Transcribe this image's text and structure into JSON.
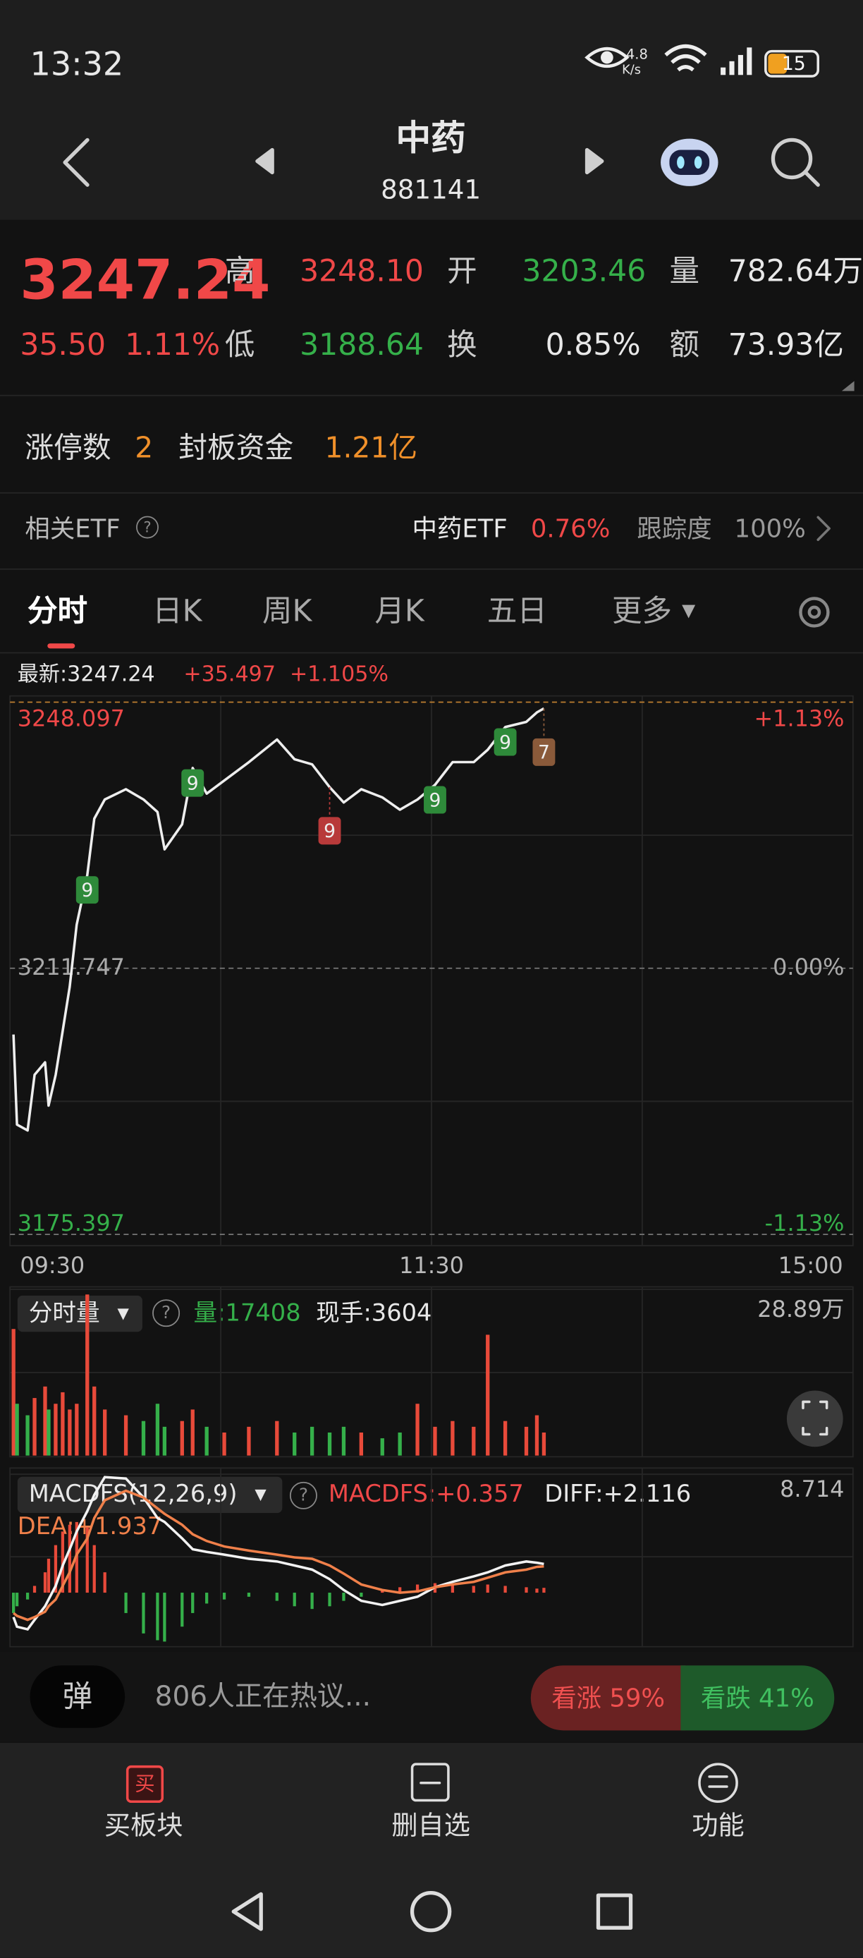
{
  "status_bar": {
    "time": "13:32",
    "net_speed": "4.8",
    "net_unit": "K/s",
    "battery": "15"
  },
  "header": {
    "title": "中药",
    "code": "881141"
  },
  "quote": {
    "price": "3247.24",
    "change": "35.50",
    "change_pct": "1.11%",
    "fields": [
      {
        "label": "高",
        "value": "3248.10",
        "color": "#f04848"
      },
      {
        "label": "开",
        "value": "3203.46",
        "color": "#35b04a"
      },
      {
        "label": "量",
        "value": "782.64万",
        "color": "#e8e8e8"
      },
      {
        "label": "低",
        "value": "3188.64",
        "color": "#35b04a"
      },
      {
        "label": "换",
        "value": "0.85%",
        "color": "#e8e8e8"
      },
      {
        "label": "额",
        "value": "73.93亿",
        "color": "#e8e8e8"
      }
    ]
  },
  "limit_row": {
    "count_label": "涨停数",
    "count": "2",
    "fund_label": "封板资金",
    "fund": "1.21亿"
  },
  "etf_row": {
    "label": "相关ETF",
    "etf_name": "中药ETF",
    "etf_change": "0.76%",
    "track_label": "跟踪度",
    "track_value": "100%"
  },
  "tabs": [
    "分时",
    "日K",
    "周K",
    "月K",
    "五日",
    "更多"
  ],
  "chart_info": {
    "latest": "最新:3247.24",
    "change": "+35.497",
    "change_pct": "+1.105%"
  },
  "price_chart": {
    "type": "line",
    "x": [
      1,
      2,
      5,
      7,
      10,
      11,
      13,
      15,
      17,
      19,
      22,
      24,
      27,
      33,
      38,
      42,
      44,
      49,
      52,
      56,
      61,
      68,
      76,
      81,
      86,
      91,
      95,
      100,
      106,
      111,
      116,
      121,
      126,
      132,
      136,
      141,
      147,
      150,
      152
    ],
    "values": [
      3202.7,
      3190.4,
      3189.6,
      3197.2,
      3198.9,
      3193.0,
      3197.2,
      3203.2,
      3209.2,
      3217.7,
      3224.5,
      3232.2,
      3234.8,
      3236.2,
      3234.8,
      3233.1,
      3228.0,
      3231.4,
      3239.1,
      3235.6,
      3237.4,
      3239.9,
      3243.0,
      3240.3,
      3239.6,
      3236.5,
      3234.4,
      3236.2,
      3235.1,
      3233.4,
      3234.8,
      3236.8,
      3239.9,
      3239.9,
      3241.6,
      3244.7,
      3245.4,
      3246.7,
      3247.24
    ],
    "color": "#eeeeee",
    "xlim": [
      0,
      240
    ],
    "xticks": [
      {
        "value": 0,
        "label": "09:30"
      },
      {
        "value": 120,
        "label": "11:30"
      },
      {
        "value": 240,
        "label": "15:00"
      }
    ],
    "ylim": [
      3175.397,
      3248.097
    ],
    "yticks": [
      3248.097,
      3211.747,
      3175.397
    ],
    "right_labels": [
      "+1.13%",
      "0.00%",
      "-1.13%"
    ],
    "annotations": [
      {
        "x": 22,
        "label": "9",
        "color": "#2e8a3a"
      },
      {
        "x": 52,
        "label": "9",
        "color": "#2e8a3a"
      },
      {
        "x": 91,
        "label": "9",
        "color": "#b83a3a"
      },
      {
        "x": 121,
        "label": "9",
        "color": "#2e8a3a"
      },
      {
        "x": 141,
        "label": "9",
        "color": "#2e8a3a"
      },
      {
        "x": 152,
        "label": "7",
        "color": "#8a5a3a"
      }
    ]
  },
  "volume_chart": {
    "type": "bar",
    "title": "分时量",
    "volume_text": "量:17408",
    "current_text": "现手:3604",
    "values": [
      22,
      9,
      7,
      10,
      12,
      8,
      9,
      11,
      8,
      9,
      28,
      12,
      8,
      7,
      6,
      9,
      5,
      6,
      8,
      5,
      4,
      5,
      6,
      4,
      5,
      4,
      5,
      4,
      3,
      4,
      9,
      5,
      6,
      5,
      21,
      6,
      5,
      7,
      4
    ],
    "ylim": [
      0,
      28.89
    ],
    "yticks": [
      {
        "value": 28.89,
        "label": "28.89万"
      }
    ]
  },
  "macd_chart": {
    "type": "macd",
    "title": "MACDFS(12,26,9)",
    "macd_text": "MACDFS:+0.357",
    "diff_text": "DIFF:+2.116",
    "dea_text": "DEA:+1.937",
    "ylim": [
      -3.7,
      8.714
    ],
    "yticks": [
      8.714
    ],
    "series": [
      {
        "name": "MACDFS",
        "color": "#e84a3a",
        "values": [
          -1.5,
          -1.0,
          -0.5,
          0.5,
          1.5,
          2.5,
          3.5,
          4.5,
          5.0,
          5.2,
          4.8,
          3.5,
          1.5,
          -1.5,
          -3.0,
          -3.5,
          -3.6,
          -2.5,
          -1.5,
          -0.8,
          -0.5,
          -0.3,
          -0.6,
          -1.0,
          -1.2,
          -1.0,
          -0.6,
          -0.3,
          0.2,
          0.4,
          0.6,
          0.7,
          0.6,
          0.5,
          0.6,
          0.5,
          0.4,
          0.3,
          0.357
        ]
      },
      {
        "name": "DIFF",
        "color": "#f2f2f2",
        "values": [
          -1.8,
          -2.5,
          -2.7,
          -2.0,
          -1.0,
          -0.5,
          0.5,
          2.0,
          3.2,
          4.5,
          6.0,
          7.2,
          8.5,
          8.4,
          7.0,
          5.5,
          5.2,
          4.0,
          3.2,
          3.0,
          2.8,
          2.5,
          2.3,
          2.0,
          1.7,
          1.0,
          0.2,
          -0.6,
          -0.9,
          -0.6,
          -0.3,
          0.4,
          0.8,
          1.2,
          1.5,
          2.0,
          2.3,
          2.2,
          2.116
        ]
      },
      {
        "name": "DEA",
        "color": "#f0804a",
        "values": [
          -1.5,
          -1.7,
          -2.0,
          -1.8,
          -1.4,
          -1.0,
          -0.5,
          0.5,
          1.5,
          2.8,
          4.0,
          5.5,
          6.8,
          7.5,
          7.0,
          6.2,
          5.8,
          5.0,
          4.3,
          3.8,
          3.4,
          3.1,
          2.8,
          2.6,
          2.5,
          2.0,
          1.4,
          0.6,
          0.2,
          0.0,
          0.1,
          0.4,
          0.6,
          0.8,
          1.1,
          1.5,
          1.7,
          1.9,
          1.937
        ]
      }
    ]
  },
  "discussion": {
    "badge": "弹",
    "text": "806人正在热议...",
    "bull": "看涨 59%",
    "bear": "看跌 41%"
  },
  "bottom_nav": {
    "buy_icon": "买",
    "items": [
      "买板块",
      "删自选",
      "功能"
    ]
  }
}
